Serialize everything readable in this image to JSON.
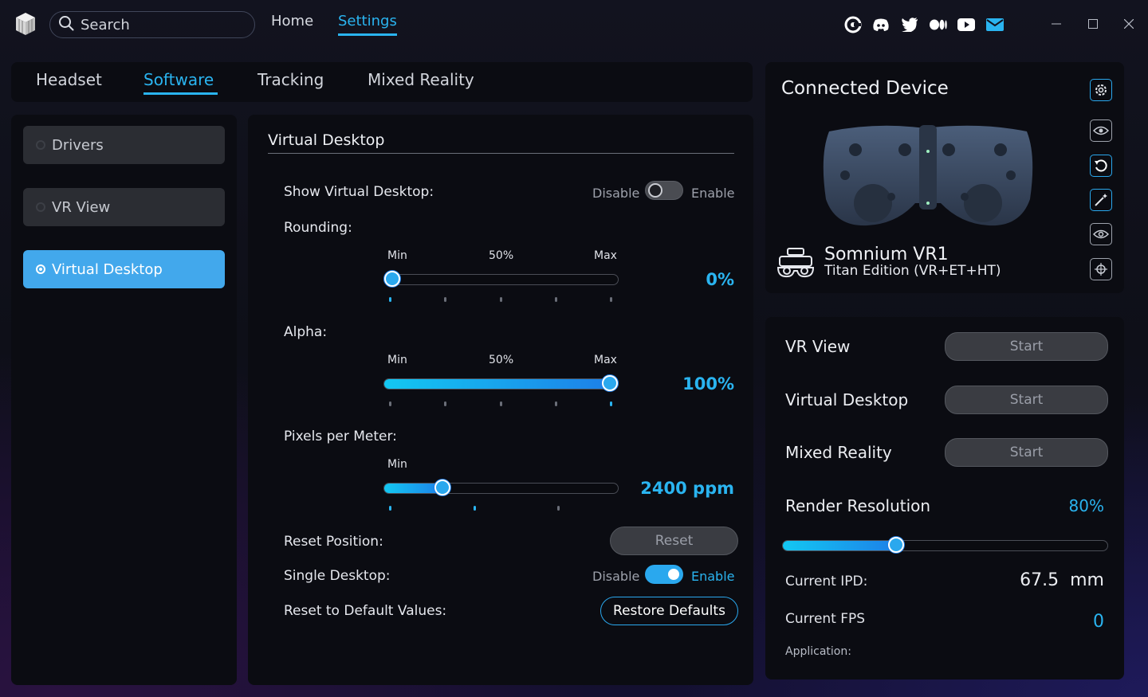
{
  "header": {
    "search_placeholder": "Search",
    "nav": [
      {
        "label": "Home",
        "active": false
      },
      {
        "label": "Settings",
        "active": true
      }
    ],
    "social_icons": [
      "at-icon",
      "discord-icon",
      "twitter-icon",
      "medium-icon",
      "youtube-icon",
      "mail-icon"
    ]
  },
  "tabs": [
    {
      "label": "Headset",
      "active": false
    },
    {
      "label": "Software",
      "active": true
    },
    {
      "label": "Tracking",
      "active": false
    },
    {
      "label": "Mixed Reality",
      "active": false
    }
  ],
  "sidebar": {
    "items": [
      {
        "label": "Drivers",
        "selected": false
      },
      {
        "label": "VR View",
        "selected": false
      },
      {
        "label": "Virtual Desktop",
        "selected": true
      }
    ]
  },
  "main": {
    "section_title": "Virtual Desktop",
    "show_virtual_desktop": {
      "label": "Show Virtual Desktop:",
      "off_label": "Disable",
      "on_label": "Enable",
      "enabled": false
    },
    "rounding": {
      "label": "Rounding:",
      "ticks": {
        "min": "Min",
        "mid": "50%",
        "max": "Max"
      },
      "value_text": "0%",
      "fraction": 0.0
    },
    "alpha": {
      "label": "Alpha:",
      "ticks": {
        "min": "Min",
        "mid": "50%",
        "max": "Max"
      },
      "value_text": "100%",
      "fraction": 1.0
    },
    "pixels_per_meter": {
      "label": "Pixels per Meter:",
      "ticks": {
        "min": "Min"
      },
      "value_text": "2400 ppm",
      "fraction": 0.23
    },
    "reset_position": {
      "label": "Reset Position:",
      "button": "Reset"
    },
    "single_desktop": {
      "label": "Single Desktop:",
      "off_label": "Disable",
      "on_label": "Enable",
      "enabled": true
    },
    "reset_defaults": {
      "label": "Reset to Default Values:",
      "button": "Restore Defaults"
    }
  },
  "device": {
    "title": "Connected Device",
    "name": "Somnium VR1",
    "edition": "Titan Edition (VR+ET+HT)",
    "side_icons": [
      "settings-gear-icon",
      "eye-tracking-icon",
      "refresh-icon",
      "magic-wand-icon",
      "eye-icon",
      "target-icon"
    ]
  },
  "stats": {
    "vr_view": {
      "label": "VR View",
      "button": "Start"
    },
    "virtual_desktop": {
      "label": "Virtual Desktop",
      "button": "Start"
    },
    "mixed_reality": {
      "label": "Mixed Reality",
      "button": "Start"
    },
    "render_resolution": {
      "label": "Render Resolution",
      "value_text": "80%",
      "fraction": 0.34
    },
    "ipd": {
      "label": "Current IPD:",
      "value": "67.5",
      "unit": "mm"
    },
    "fps": {
      "label": "Current FPS",
      "value": "0"
    },
    "application": {
      "label": "Application:"
    }
  },
  "colors": {
    "accent": "#2ab4f0",
    "panel": "#0b0c12",
    "button": "#3a3c42"
  }
}
